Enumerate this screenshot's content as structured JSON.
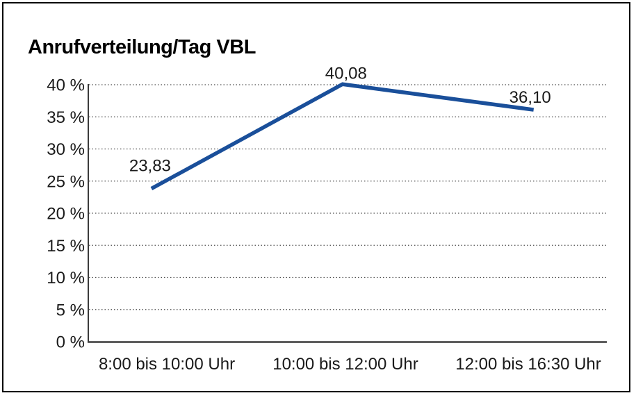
{
  "window": {
    "background_color": "#ffffff",
    "frame_border_color": "#000000"
  },
  "chart_data": {
    "type": "line",
    "title": "Anrufverteilung/Tag VBL",
    "categories": [
      "8:00 bis 10:00 Uhr",
      "10:00 bis 12:00 Uhr",
      "12:00 bis 16:30 Uhr"
    ],
    "series": [
      {
        "name": "Anrufverteilung/Tag VBL",
        "values": [
          23.83,
          40.08,
          36.1
        ],
        "value_labels": [
          "23,83",
          "40,08",
          "36,10"
        ]
      }
    ],
    "xlabel": "",
    "ylabel": "",
    "ylim": [
      0,
      40
    ],
    "y_tick_step": 5,
    "y_ticks": [
      {
        "value": 0,
        "label": "0 %"
      },
      {
        "value": 5,
        "label": "5 %"
      },
      {
        "value": 10,
        "label": "10 %"
      },
      {
        "value": 15,
        "label": "15 %"
      },
      {
        "value": 20,
        "label": "20 %"
      },
      {
        "value": 25,
        "label": "25 %"
      },
      {
        "value": 30,
        "label": "30 %"
      },
      {
        "value": 35,
        "label": "35 %"
      },
      {
        "value": 40,
        "label": "40 %"
      }
    ],
    "grid": "horizontal-dotted",
    "legend_position": "none",
    "line_color": "#1a4f9a",
    "axis_color": "#3a3a3a",
    "grid_color": "#4d4d4d",
    "text_color": "#1a1a1a"
  }
}
